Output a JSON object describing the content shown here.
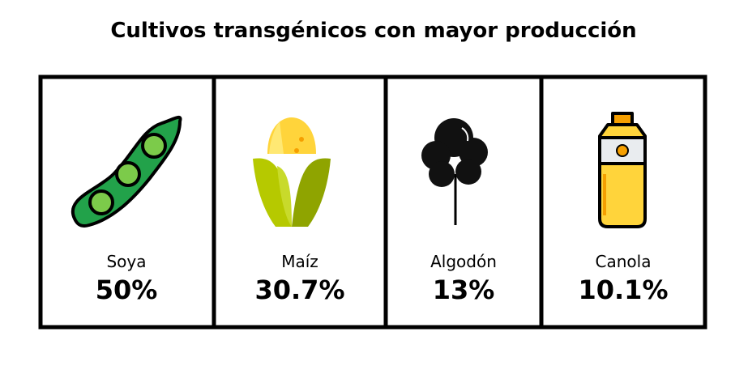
{
  "title": "Cultivos transgénicos con mayor producción",
  "items": [
    {
      "label": "Soya",
      "value": "50%"
    },
    {
      "label": "Maíz",
      "value": "30.7%"
    },
    {
      "label": "Algodón",
      "value": "13%"
    },
    {
      "label": "Canola",
      "value": "10.1%"
    }
  ]
}
